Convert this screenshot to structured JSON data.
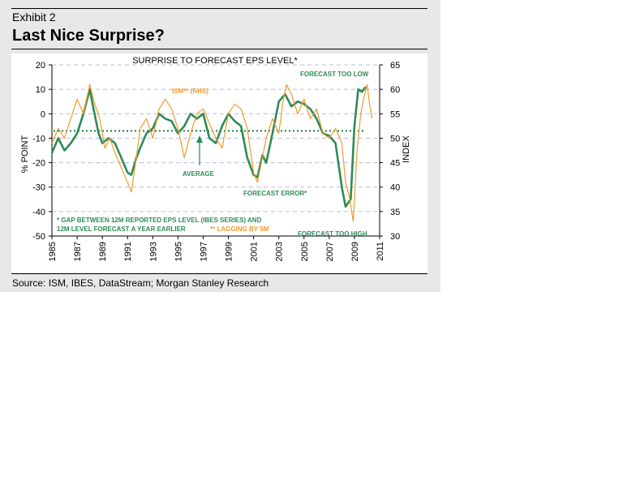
{
  "header": {
    "exhibit": "Exhibit 2",
    "title": "Last Nice Surprise?"
  },
  "footer": {
    "source": "Source: ISM, IBES, DataStream; Morgan Stanley Research"
  },
  "colors": {
    "forecast_error": "#2e8b57",
    "ism": "#f39a2b",
    "average": "#1e7b45",
    "grid": "#b8bce0",
    "annotation_green": "#2e8b57",
    "annotation_orange": "#f39a2b"
  },
  "chart_data": {
    "type": "line",
    "title": "SURPRISE TO FORECAST EPS LEVEL*",
    "ylabel": "% POINT",
    "y2label": "INDEX",
    "xlim": [
      1985,
      2011
    ],
    "ylim": [
      -50,
      20
    ],
    "y2lim": [
      30,
      65
    ],
    "x_ticks": [
      "1985",
      "1987",
      "1989",
      "1991",
      "1993",
      "1995",
      "1997",
      "1999",
      "2001",
      "2003",
      "2005",
      "2007",
      "2009",
      "2011"
    ],
    "y_ticks": [
      "20",
      "10",
      "0",
      "-10",
      "-20",
      "-30",
      "-40",
      "-50"
    ],
    "y2_ticks": [
      "65",
      "60",
      "55",
      "50",
      "45",
      "40",
      "35",
      "30"
    ],
    "average": -7,
    "series": [
      {
        "name": "FORECAST ERROR*",
        "axis": "left",
        "x": [
          1985.0,
          1985.5,
          1986.0,
          1986.5,
          1987.0,
          1987.5,
          1988.0,
          1988.3,
          1988.7,
          1989.0,
          1989.5,
          1990.0,
          1990.5,
          1991.0,
          1991.3,
          1991.7,
          1992.0,
          1992.5,
          1993.0,
          1993.5,
          1994.0,
          1994.5,
          1995.0,
          1995.5,
          1996.0,
          1996.5,
          1997.0,
          1997.5,
          1998.0,
          1998.5,
          1999.0,
          1999.5,
          2000.0,
          2000.5,
          2001.0,
          2001.3,
          2001.7,
          2002.0,
          2002.5,
          2003.0,
          2003.5,
          2004.0,
          2004.5,
          2005.0,
          2005.5,
          2006.0,
          2006.5,
          2007.0,
          2007.5,
          2008.0,
          2008.3,
          2008.7,
          2009.0,
          2009.3,
          2009.6,
          2009.9
        ],
        "values": [
          -16,
          -10,
          -15,
          -12,
          -8,
          0,
          10,
          2,
          -8,
          -12,
          -10,
          -12,
          -18,
          -24,
          -25,
          -18,
          -14,
          -8,
          -6,
          0,
          -2,
          -3,
          -8,
          -5,
          0,
          -2,
          0,
          -10,
          -12,
          -5,
          0,
          -3,
          -5,
          -18,
          -25,
          -26,
          -17,
          -20,
          -8,
          5,
          8,
          3,
          5,
          4,
          2,
          -2,
          -8,
          -9,
          -12,
          -30,
          -38,
          -35,
          -5,
          10,
          9,
          11
        ]
      },
      {
        "name": "ISM** (RHS)",
        "axis": "right",
        "x": [
          1985.0,
          1985.5,
          1986.0,
          1986.5,
          1987.0,
          1987.5,
          1988.0,
          1988.4,
          1988.8,
          1989.2,
          1989.6,
          1990.0,
          1990.5,
          1991.0,
          1991.3,
          1991.7,
          1992.0,
          1992.5,
          1993.0,
          1993.5,
          1994.0,
          1994.5,
          1995.0,
          1995.5,
          1996.0,
          1996.5,
          1997.0,
          1997.5,
          1998.0,
          1998.5,
          1999.0,
          1999.5,
          2000.0,
          2000.5,
          2001.0,
          2001.3,
          2001.7,
          2002.0,
          2002.5,
          2003.0,
          2003.3,
          2003.6,
          2004.0,
          2004.5,
          2005.0,
          2005.5,
          2006.0,
          2006.5,
          2007.0,
          2007.5,
          2008.0,
          2008.3,
          2008.6,
          2008.9,
          2009.2,
          2009.5,
          2009.8,
          2010.0,
          2010.2,
          2010.4
        ],
        "values": [
          49,
          52,
          50,
          54,
          58,
          55,
          61,
          57,
          54,
          48,
          50,
          47,
          44,
          41,
          39,
          46,
          52,
          54,
          50,
          56,
          58,
          56,
          52,
          46,
          51,
          55,
          56,
          53,
          50,
          48,
          55,
          57,
          56,
          52,
          43,
          41,
          46,
          50,
          54,
          51,
          57,
          61,
          59,
          55,
          58,
          54,
          56,
          51,
          50,
          52,
          49,
          41,
          38,
          33,
          47,
          55,
          59,
          61,
          57,
          54
        ]
      }
    ],
    "annotations": {
      "ism_label": "ISM** (RHS)",
      "forecast_too_low": "FORECAST TOO LOW",
      "forecast_too_high": "FORECAST TOO HIGH",
      "average_label": "AVERAGE",
      "forecast_error_label": "FORECAST ERROR*",
      "footnote_line1": "* GAP BETWEEN 12M REPORTED EPS LEVEL (IBES SERIES) AND",
      "footnote_line2": "12M LEVEL FORECAST A YEAR EARLIER",
      "footnote_lag": "** LAGGING BY 5M"
    }
  }
}
